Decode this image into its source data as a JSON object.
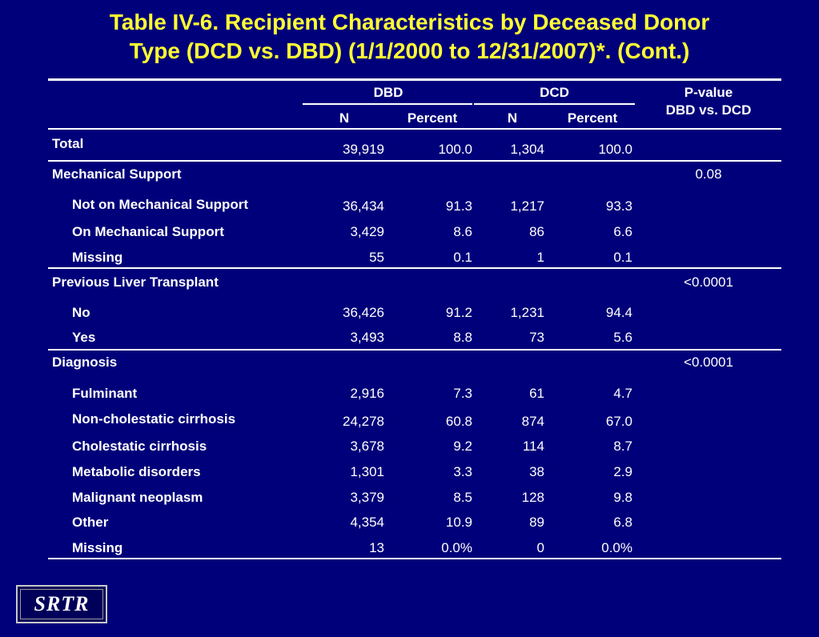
{
  "title": {
    "line1": "Table IV-6. Recipient Characteristics by Deceased Donor",
    "line2": "Type (DCD vs. DBD) (1/1/2000 to 12/31/2007)*. (Cont.)"
  },
  "header": {
    "dbd": "DBD",
    "dcd": "DCD",
    "n": "N",
    "percent": "Percent",
    "pvalue_line1": "P-value",
    "pvalue_line2": "DBD vs. DCD"
  },
  "rows": [
    {
      "label": "Total",
      "indent": false,
      "dbd_n": "39,919",
      "dbd_pct": "100.0",
      "dcd_n": "1,304",
      "dcd_pct": "100.0",
      "p": ""
    },
    {
      "label": "Mechanical Support",
      "indent": false,
      "dbd_n": "",
      "dbd_pct": "",
      "dcd_n": "",
      "dcd_pct": "",
      "p": "0.08"
    },
    {
      "label": "Not on Mechanical Support",
      "indent": true,
      "dbd_n": "36,434",
      "dbd_pct": "91.3",
      "dcd_n": "1,217",
      "dcd_pct": "93.3",
      "p": ""
    },
    {
      "label": "On Mechanical Support",
      "indent": true,
      "dbd_n": "3,429",
      "dbd_pct": "8.6",
      "dcd_n": "86",
      "dcd_pct": "6.6",
      "p": ""
    },
    {
      "label": "Missing",
      "indent": true,
      "dbd_n": "55",
      "dbd_pct": "0.1",
      "dcd_n": "1",
      "dcd_pct": "0.1",
      "p": ""
    },
    {
      "label": "Previous Liver Transplant",
      "indent": false,
      "dbd_n": "",
      "dbd_pct": "",
      "dcd_n": "",
      "dcd_pct": "",
      "p": "<0.0001"
    },
    {
      "label": "No",
      "indent": true,
      "dbd_n": "36,426",
      "dbd_pct": "91.2",
      "dcd_n": "1,231",
      "dcd_pct": "94.4",
      "p": ""
    },
    {
      "label": "Yes",
      "indent": true,
      "dbd_n": "3,493",
      "dbd_pct": "8.8",
      "dcd_n": "73",
      "dcd_pct": "5.6",
      "p": ""
    },
    {
      "label": "Diagnosis",
      "indent": false,
      "dbd_n": "",
      "dbd_pct": "",
      "dcd_n": "",
      "dcd_pct": "",
      "p": "<0.0001"
    },
    {
      "label": "Fulminant",
      "indent": true,
      "dbd_n": "2,916",
      "dbd_pct": "7.3",
      "dcd_n": "61",
      "dcd_pct": "4.7",
      "p": ""
    },
    {
      "label": "Non-cholestatic cirrhosis",
      "indent": true,
      "dbd_n": "24,278",
      "dbd_pct": "60.8",
      "dcd_n": "874",
      "dcd_pct": "67.0",
      "p": ""
    },
    {
      "label": "Cholestatic cirrhosis",
      "indent": true,
      "dbd_n": "3,678",
      "dbd_pct": "9.2",
      "dcd_n": "114",
      "dcd_pct": "8.7",
      "p": ""
    },
    {
      "label": "Metabolic disorders",
      "indent": true,
      "dbd_n": "1,301",
      "dbd_pct": "3.3",
      "dcd_n": "38",
      "dcd_pct": "2.9",
      "p": ""
    },
    {
      "label": "Malignant neoplasm",
      "indent": true,
      "dbd_n": "3,379",
      "dbd_pct": "8.5",
      "dcd_n": "128",
      "dcd_pct": "9.8",
      "p": ""
    },
    {
      "label": "Other",
      "indent": true,
      "dbd_n": "4,354",
      "dbd_pct": "10.9",
      "dcd_n": "89",
      "dcd_pct": "6.8",
      "p": ""
    },
    {
      "label": "Missing",
      "indent": true,
      "dbd_n": "13",
      "dbd_pct": "0.0%",
      "dcd_n": "0",
      "dcd_pct": "0.0%",
      "p": ""
    }
  ],
  "logo": "SRTR",
  "colors": {
    "background": "#00007a",
    "title": "#ffff33",
    "text": "#ffffff"
  }
}
